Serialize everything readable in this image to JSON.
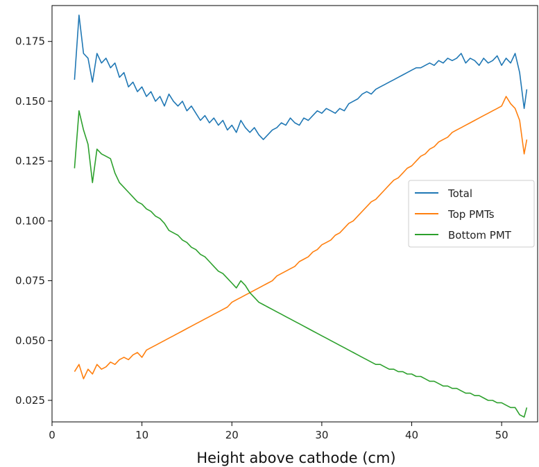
{
  "chart_data": {
    "type": "line",
    "title": "",
    "xlabel": "Height above cathode (cm)",
    "ylabel": "",
    "xlim": [
      0,
      54
    ],
    "ylim": [
      0.016,
      0.19
    ],
    "xticks": [
      0,
      10,
      20,
      30,
      40,
      50
    ],
    "yticks": [
      0.025,
      0.05,
      0.075,
      0.1,
      0.125,
      0.15,
      0.175
    ],
    "ytick_format": 3,
    "grid": false,
    "legend_position": "center-right",
    "series": [
      {
        "name": "Total",
        "color": "#1f77b4",
        "points": [
          [
            2.5,
            0.159
          ],
          [
            3.0,
            0.186
          ],
          [
            3.5,
            0.17
          ],
          [
            4.0,
            0.168
          ],
          [
            4.5,
            0.158
          ],
          [
            5.0,
            0.17
          ],
          [
            5.5,
            0.166
          ],
          [
            6.0,
            0.168
          ],
          [
            6.5,
            0.164
          ],
          [
            7.0,
            0.166
          ],
          [
            7.5,
            0.16
          ],
          [
            8.0,
            0.162
          ],
          [
            8.5,
            0.156
          ],
          [
            9.0,
            0.158
          ],
          [
            9.5,
            0.154
          ],
          [
            10.0,
            0.156
          ],
          [
            10.5,
            0.152
          ],
          [
            11.0,
            0.154
          ],
          [
            11.5,
            0.15
          ],
          [
            12.0,
            0.152
          ],
          [
            12.5,
            0.148
          ],
          [
            13.0,
            0.153
          ],
          [
            13.5,
            0.15
          ],
          [
            14.0,
            0.148
          ],
          [
            14.5,
            0.15
          ],
          [
            15.0,
            0.146
          ],
          [
            15.5,
            0.148
          ],
          [
            16.0,
            0.145
          ],
          [
            16.5,
            0.142
          ],
          [
            17.0,
            0.144
          ],
          [
            17.5,
            0.141
          ],
          [
            18.0,
            0.143
          ],
          [
            18.5,
            0.14
          ],
          [
            19.0,
            0.142
          ],
          [
            19.5,
            0.138
          ],
          [
            20.0,
            0.14
          ],
          [
            20.5,
            0.137
          ],
          [
            21.0,
            0.142
          ],
          [
            21.5,
            0.139
          ],
          [
            22.0,
            0.137
          ],
          [
            22.5,
            0.139
          ],
          [
            23.0,
            0.136
          ],
          [
            23.5,
            0.134
          ],
          [
            24.0,
            0.136
          ],
          [
            24.5,
            0.138
          ],
          [
            25.0,
            0.139
          ],
          [
            25.5,
            0.141
          ],
          [
            26.0,
            0.14
          ],
          [
            26.5,
            0.143
          ],
          [
            27.0,
            0.141
          ],
          [
            27.5,
            0.14
          ],
          [
            28.0,
            0.143
          ],
          [
            28.5,
            0.142
          ],
          [
            29.0,
            0.144
          ],
          [
            29.5,
            0.146
          ],
          [
            30.0,
            0.145
          ],
          [
            30.5,
            0.147
          ],
          [
            31.0,
            0.146
          ],
          [
            31.5,
            0.145
          ],
          [
            32.0,
            0.147
          ],
          [
            32.5,
            0.146
          ],
          [
            33.0,
            0.149
          ],
          [
            33.5,
            0.15
          ],
          [
            34.0,
            0.151
          ],
          [
            34.5,
            0.153
          ],
          [
            35.0,
            0.154
          ],
          [
            35.5,
            0.153
          ],
          [
            36.0,
            0.155
          ],
          [
            36.5,
            0.156
          ],
          [
            37.0,
            0.157
          ],
          [
            37.5,
            0.158
          ],
          [
            38.0,
            0.159
          ],
          [
            38.5,
            0.16
          ],
          [
            39.0,
            0.161
          ],
          [
            39.5,
            0.162
          ],
          [
            40.0,
            0.163
          ],
          [
            40.5,
            0.164
          ],
          [
            41.0,
            0.164
          ],
          [
            41.5,
            0.165
          ],
          [
            42.0,
            0.166
          ],
          [
            42.5,
            0.165
          ],
          [
            43.0,
            0.167
          ],
          [
            43.5,
            0.166
          ],
          [
            44.0,
            0.168
          ],
          [
            44.5,
            0.167
          ],
          [
            45.0,
            0.168
          ],
          [
            45.5,
            0.17
          ],
          [
            46.0,
            0.166
          ],
          [
            46.5,
            0.168
          ],
          [
            47.0,
            0.167
          ],
          [
            47.5,
            0.165
          ],
          [
            48.0,
            0.168
          ],
          [
            48.5,
            0.166
          ],
          [
            49.0,
            0.167
          ],
          [
            49.5,
            0.169
          ],
          [
            50.0,
            0.165
          ],
          [
            50.5,
            0.168
          ],
          [
            51.0,
            0.166
          ],
          [
            51.5,
            0.17
          ],
          [
            52.0,
            0.162
          ],
          [
            52.5,
            0.147
          ],
          [
            52.8,
            0.155
          ]
        ]
      },
      {
        "name": "Top PMTs",
        "color": "#ff7f0e",
        "points": [
          [
            2.5,
            0.037
          ],
          [
            3.0,
            0.04
          ],
          [
            3.5,
            0.034
          ],
          [
            4.0,
            0.038
          ],
          [
            4.5,
            0.036
          ],
          [
            5.0,
            0.04
          ],
          [
            5.5,
            0.038
          ],
          [
            6.0,
            0.039
          ],
          [
            6.5,
            0.041
          ],
          [
            7.0,
            0.04
          ],
          [
            7.5,
            0.042
          ],
          [
            8.0,
            0.043
          ],
          [
            8.5,
            0.042
          ],
          [
            9.0,
            0.044
          ],
          [
            9.5,
            0.045
          ],
          [
            10.0,
            0.043
          ],
          [
            10.5,
            0.046
          ],
          [
            11.0,
            0.047
          ],
          [
            11.5,
            0.048
          ],
          [
            12.0,
            0.049
          ],
          [
            12.5,
            0.05
          ],
          [
            13.0,
            0.051
          ],
          [
            13.5,
            0.052
          ],
          [
            14.0,
            0.053
          ],
          [
            14.5,
            0.054
          ],
          [
            15.0,
            0.055
          ],
          [
            15.5,
            0.056
          ],
          [
            16.0,
            0.057
          ],
          [
            16.5,
            0.058
          ],
          [
            17.0,
            0.059
          ],
          [
            17.5,
            0.06
          ],
          [
            18.0,
            0.061
          ],
          [
            18.5,
            0.062
          ],
          [
            19.0,
            0.063
          ],
          [
            19.5,
            0.064
          ],
          [
            20.0,
            0.066
          ],
          [
            20.5,
            0.067
          ],
          [
            21.0,
            0.068
          ],
          [
            21.5,
            0.069
          ],
          [
            22.0,
            0.07
          ],
          [
            22.5,
            0.071
          ],
          [
            23.0,
            0.072
          ],
          [
            23.5,
            0.073
          ],
          [
            24.0,
            0.074
          ],
          [
            24.5,
            0.075
          ],
          [
            25.0,
            0.077
          ],
          [
            25.5,
            0.078
          ],
          [
            26.0,
            0.079
          ],
          [
            26.5,
            0.08
          ],
          [
            27.0,
            0.081
          ],
          [
            27.5,
            0.083
          ],
          [
            28.0,
            0.084
          ],
          [
            28.5,
            0.085
          ],
          [
            29.0,
            0.087
          ],
          [
            29.5,
            0.088
          ],
          [
            30.0,
            0.09
          ],
          [
            30.5,
            0.091
          ],
          [
            31.0,
            0.092
          ],
          [
            31.5,
            0.094
          ],
          [
            32.0,
            0.095
          ],
          [
            32.5,
            0.097
          ],
          [
            33.0,
            0.099
          ],
          [
            33.5,
            0.1
          ],
          [
            34.0,
            0.102
          ],
          [
            34.5,
            0.104
          ],
          [
            35.0,
            0.106
          ],
          [
            35.5,
            0.108
          ],
          [
            36.0,
            0.109
          ],
          [
            36.5,
            0.111
          ],
          [
            37.0,
            0.113
          ],
          [
            37.5,
            0.115
          ],
          [
            38.0,
            0.117
          ],
          [
            38.5,
            0.118
          ],
          [
            39.0,
            0.12
          ],
          [
            39.5,
            0.122
          ],
          [
            40.0,
            0.123
          ],
          [
            40.5,
            0.125
          ],
          [
            41.0,
            0.127
          ],
          [
            41.5,
            0.128
          ],
          [
            42.0,
            0.13
          ],
          [
            42.5,
            0.131
          ],
          [
            43.0,
            0.133
          ],
          [
            43.5,
            0.134
          ],
          [
            44.0,
            0.135
          ],
          [
            44.5,
            0.137
          ],
          [
            45.0,
            0.138
          ],
          [
            45.5,
            0.139
          ],
          [
            46.0,
            0.14
          ],
          [
            46.5,
            0.141
          ],
          [
            47.0,
            0.142
          ],
          [
            47.5,
            0.143
          ],
          [
            48.0,
            0.144
          ],
          [
            48.5,
            0.145
          ],
          [
            49.0,
            0.146
          ],
          [
            49.5,
            0.147
          ],
          [
            50.0,
            0.148
          ],
          [
            50.5,
            0.152
          ],
          [
            51.0,
            0.149
          ],
          [
            51.5,
            0.147
          ],
          [
            52.0,
            0.142
          ],
          [
            52.5,
            0.128
          ],
          [
            52.8,
            0.134
          ]
        ]
      },
      {
        "name": "Bottom PMT",
        "color": "#2ca02c",
        "points": [
          [
            2.5,
            0.122
          ],
          [
            3.0,
            0.146
          ],
          [
            3.5,
            0.138
          ],
          [
            4.0,
            0.132
          ],
          [
            4.5,
            0.116
          ],
          [
            5.0,
            0.13
          ],
          [
            5.5,
            0.128
          ],
          [
            6.0,
            0.127
          ],
          [
            6.5,
            0.126
          ],
          [
            7.0,
            0.12
          ],
          [
            7.5,
            0.116
          ],
          [
            8.0,
            0.114
          ],
          [
            8.5,
            0.112
          ],
          [
            9.0,
            0.11
          ],
          [
            9.5,
            0.108
          ],
          [
            10.0,
            0.107
          ],
          [
            10.5,
            0.105
          ],
          [
            11.0,
            0.104
          ],
          [
            11.5,
            0.102
          ],
          [
            12.0,
            0.101
          ],
          [
            12.5,
            0.099
          ],
          [
            13.0,
            0.096
          ],
          [
            13.5,
            0.095
          ],
          [
            14.0,
            0.094
          ],
          [
            14.5,
            0.092
          ],
          [
            15.0,
            0.091
          ],
          [
            15.5,
            0.089
          ],
          [
            16.0,
            0.088
          ],
          [
            16.5,
            0.086
          ],
          [
            17.0,
            0.085
          ],
          [
            17.5,
            0.083
          ],
          [
            18.0,
            0.081
          ],
          [
            18.5,
            0.079
          ],
          [
            19.0,
            0.078
          ],
          [
            19.5,
            0.076
          ],
          [
            20.0,
            0.074
          ],
          [
            20.5,
            0.072
          ],
          [
            21.0,
            0.075
          ],
          [
            21.5,
            0.073
          ],
          [
            22.0,
            0.07
          ],
          [
            22.5,
            0.068
          ],
          [
            23.0,
            0.066
          ],
          [
            23.5,
            0.065
          ],
          [
            24.0,
            0.064
          ],
          [
            24.5,
            0.063
          ],
          [
            25.0,
            0.062
          ],
          [
            25.5,
            0.061
          ],
          [
            26.0,
            0.06
          ],
          [
            26.5,
            0.059
          ],
          [
            27.0,
            0.058
          ],
          [
            27.5,
            0.057
          ],
          [
            28.0,
            0.056
          ],
          [
            28.5,
            0.055
          ],
          [
            29.0,
            0.054
          ],
          [
            29.5,
            0.053
          ],
          [
            30.0,
            0.052
          ],
          [
            30.5,
            0.051
          ],
          [
            31.0,
            0.05
          ],
          [
            31.5,
            0.049
          ],
          [
            32.0,
            0.048
          ],
          [
            32.5,
            0.047
          ],
          [
            33.0,
            0.046
          ],
          [
            33.5,
            0.045
          ],
          [
            34.0,
            0.044
          ],
          [
            34.5,
            0.043
          ],
          [
            35.0,
            0.042
          ],
          [
            35.5,
            0.041
          ],
          [
            36.0,
            0.04
          ],
          [
            36.5,
            0.04
          ],
          [
            37.0,
            0.039
          ],
          [
            37.5,
            0.038
          ],
          [
            38.0,
            0.038
          ],
          [
            38.5,
            0.037
          ],
          [
            39.0,
            0.037
          ],
          [
            39.5,
            0.036
          ],
          [
            40.0,
            0.036
          ],
          [
            40.5,
            0.035
          ],
          [
            41.0,
            0.035
          ],
          [
            41.5,
            0.034
          ],
          [
            42.0,
            0.033
          ],
          [
            42.5,
            0.033
          ],
          [
            43.0,
            0.032
          ],
          [
            43.5,
            0.031
          ],
          [
            44.0,
            0.031
          ],
          [
            44.5,
            0.03
          ],
          [
            45.0,
            0.03
          ],
          [
            45.5,
            0.029
          ],
          [
            46.0,
            0.028
          ],
          [
            46.5,
            0.028
          ],
          [
            47.0,
            0.027
          ],
          [
            47.5,
            0.027
          ],
          [
            48.0,
            0.026
          ],
          [
            48.5,
            0.025
          ],
          [
            49.0,
            0.025
          ],
          [
            49.5,
            0.024
          ],
          [
            50.0,
            0.024
          ],
          [
            50.5,
            0.023
          ],
          [
            51.0,
            0.022
          ],
          [
            51.5,
            0.022
          ],
          [
            52.0,
            0.019
          ],
          [
            52.5,
            0.018
          ],
          [
            52.8,
            0.022
          ]
        ]
      }
    ]
  }
}
